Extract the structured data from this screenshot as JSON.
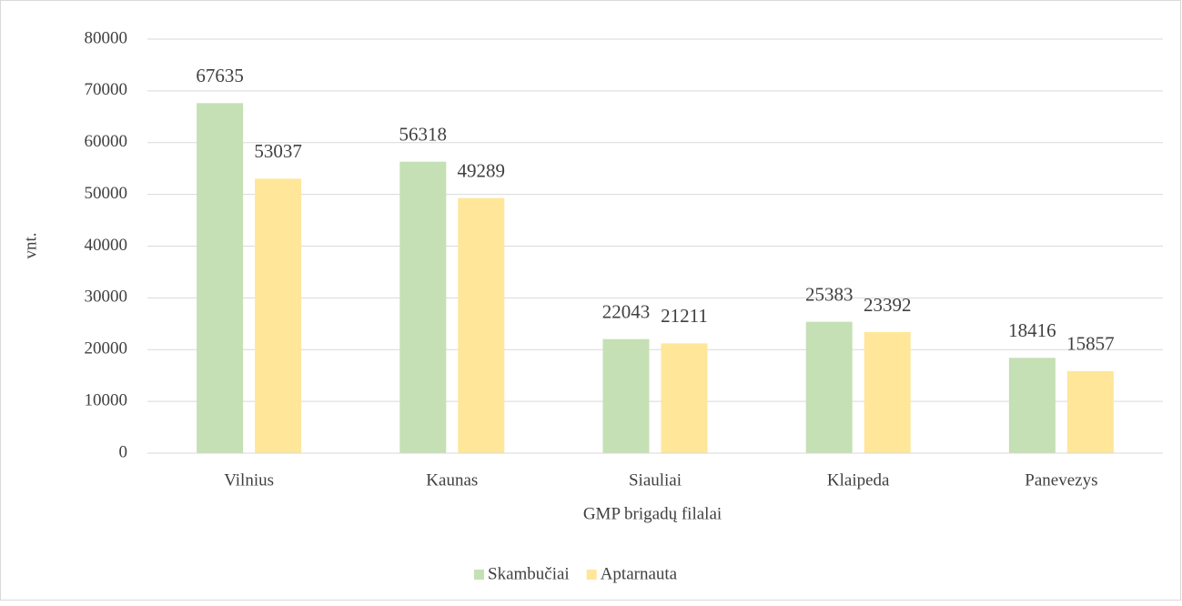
{
  "chart_data": {
    "type": "bar",
    "categories": [
      "Vilnius",
      "Kaunas",
      "Siauliai",
      "Klaipeda",
      "Panevezys"
    ],
    "series": [
      {
        "name": "Skambučiai",
        "color": "#c5e0b4",
        "values": [
          67635,
          56318,
          22043,
          25383,
          18416
        ]
      },
      {
        "name": "Aptarnauta",
        "color": "#ffe699",
        "values": [
          53037,
          49289,
          21211,
          23392,
          15857
        ]
      }
    ],
    "xlabel": "GMP brigadų filalai",
    "ylabel": "vnt.",
    "ylim": [
      0,
      80000
    ],
    "yticks": [
      0,
      10000,
      20000,
      30000,
      40000,
      50000,
      60000,
      70000,
      80000
    ],
    "grid": true,
    "legend": "bottom"
  }
}
